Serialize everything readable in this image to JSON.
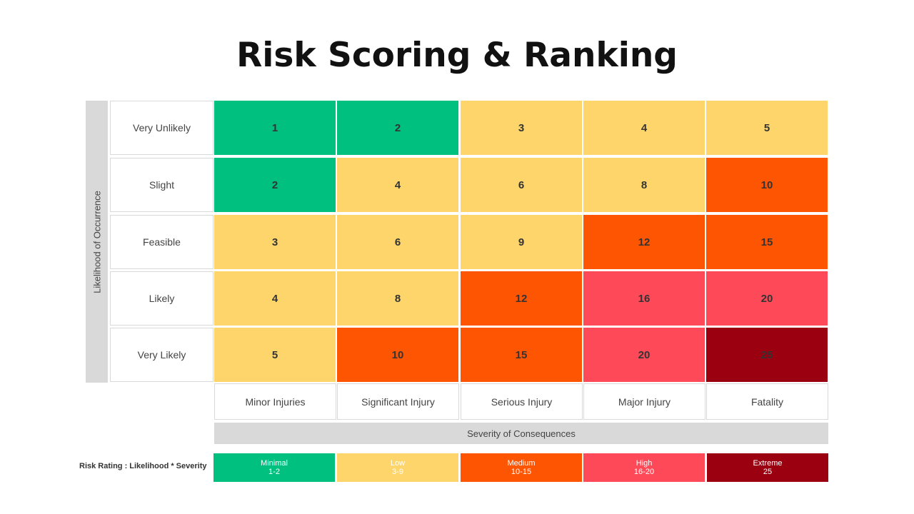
{
  "title": "Risk Scoring & Ranking",
  "y_axis_label": "Likelihood of Occurrence",
  "x_axis_label": "Severity of Consequences",
  "rows": [
    "Very Unlikely",
    "Slight",
    "Feasible",
    "Likely",
    "Very Likely"
  ],
  "columns": [
    "Minor Injuries",
    "Significant Injury",
    "Serious Injury",
    "Major Injury",
    "Fatality"
  ],
  "scores": [
    [
      "1",
      "2",
      "3",
      "4",
      "5"
    ],
    [
      "2",
      "4",
      "6",
      "8",
      "10"
    ],
    [
      "3",
      "6",
      "9",
      "12",
      "15"
    ],
    [
      "4",
      "8",
      "12",
      "16",
      "20"
    ],
    [
      "5",
      "10",
      "15",
      "20",
      "25"
    ]
  ],
  "levels": [
    [
      "minimal",
      "minimal",
      "low",
      "low",
      "low"
    ],
    [
      "minimal",
      "low",
      "low",
      "low",
      "medium"
    ],
    [
      "low",
      "low",
      "low",
      "medium",
      "medium"
    ],
    [
      "low",
      "low",
      "medium",
      "high",
      "high"
    ],
    [
      "low",
      "medium",
      "medium",
      "high",
      "extreme"
    ]
  ],
  "colors": {
    "minimal": "#00c07f",
    "low": "#fdd56b",
    "medium": "#fe5502",
    "high": "#fe4a58",
    "extreme": "#9a000f"
  },
  "legend": {
    "title": "Risk Rating : Likelihood * Severity",
    "items": [
      {
        "level": "minimal",
        "label": "Minimal",
        "range": "1-2"
      },
      {
        "level": "low",
        "label": "Low",
        "range": "3-9"
      },
      {
        "level": "medium",
        "label": "Medium",
        "range": "10-15"
      },
      {
        "level": "high",
        "label": "High",
        "range": "16-20"
      },
      {
        "level": "extreme",
        "label": "Extreme",
        "range": "25"
      }
    ]
  }
}
